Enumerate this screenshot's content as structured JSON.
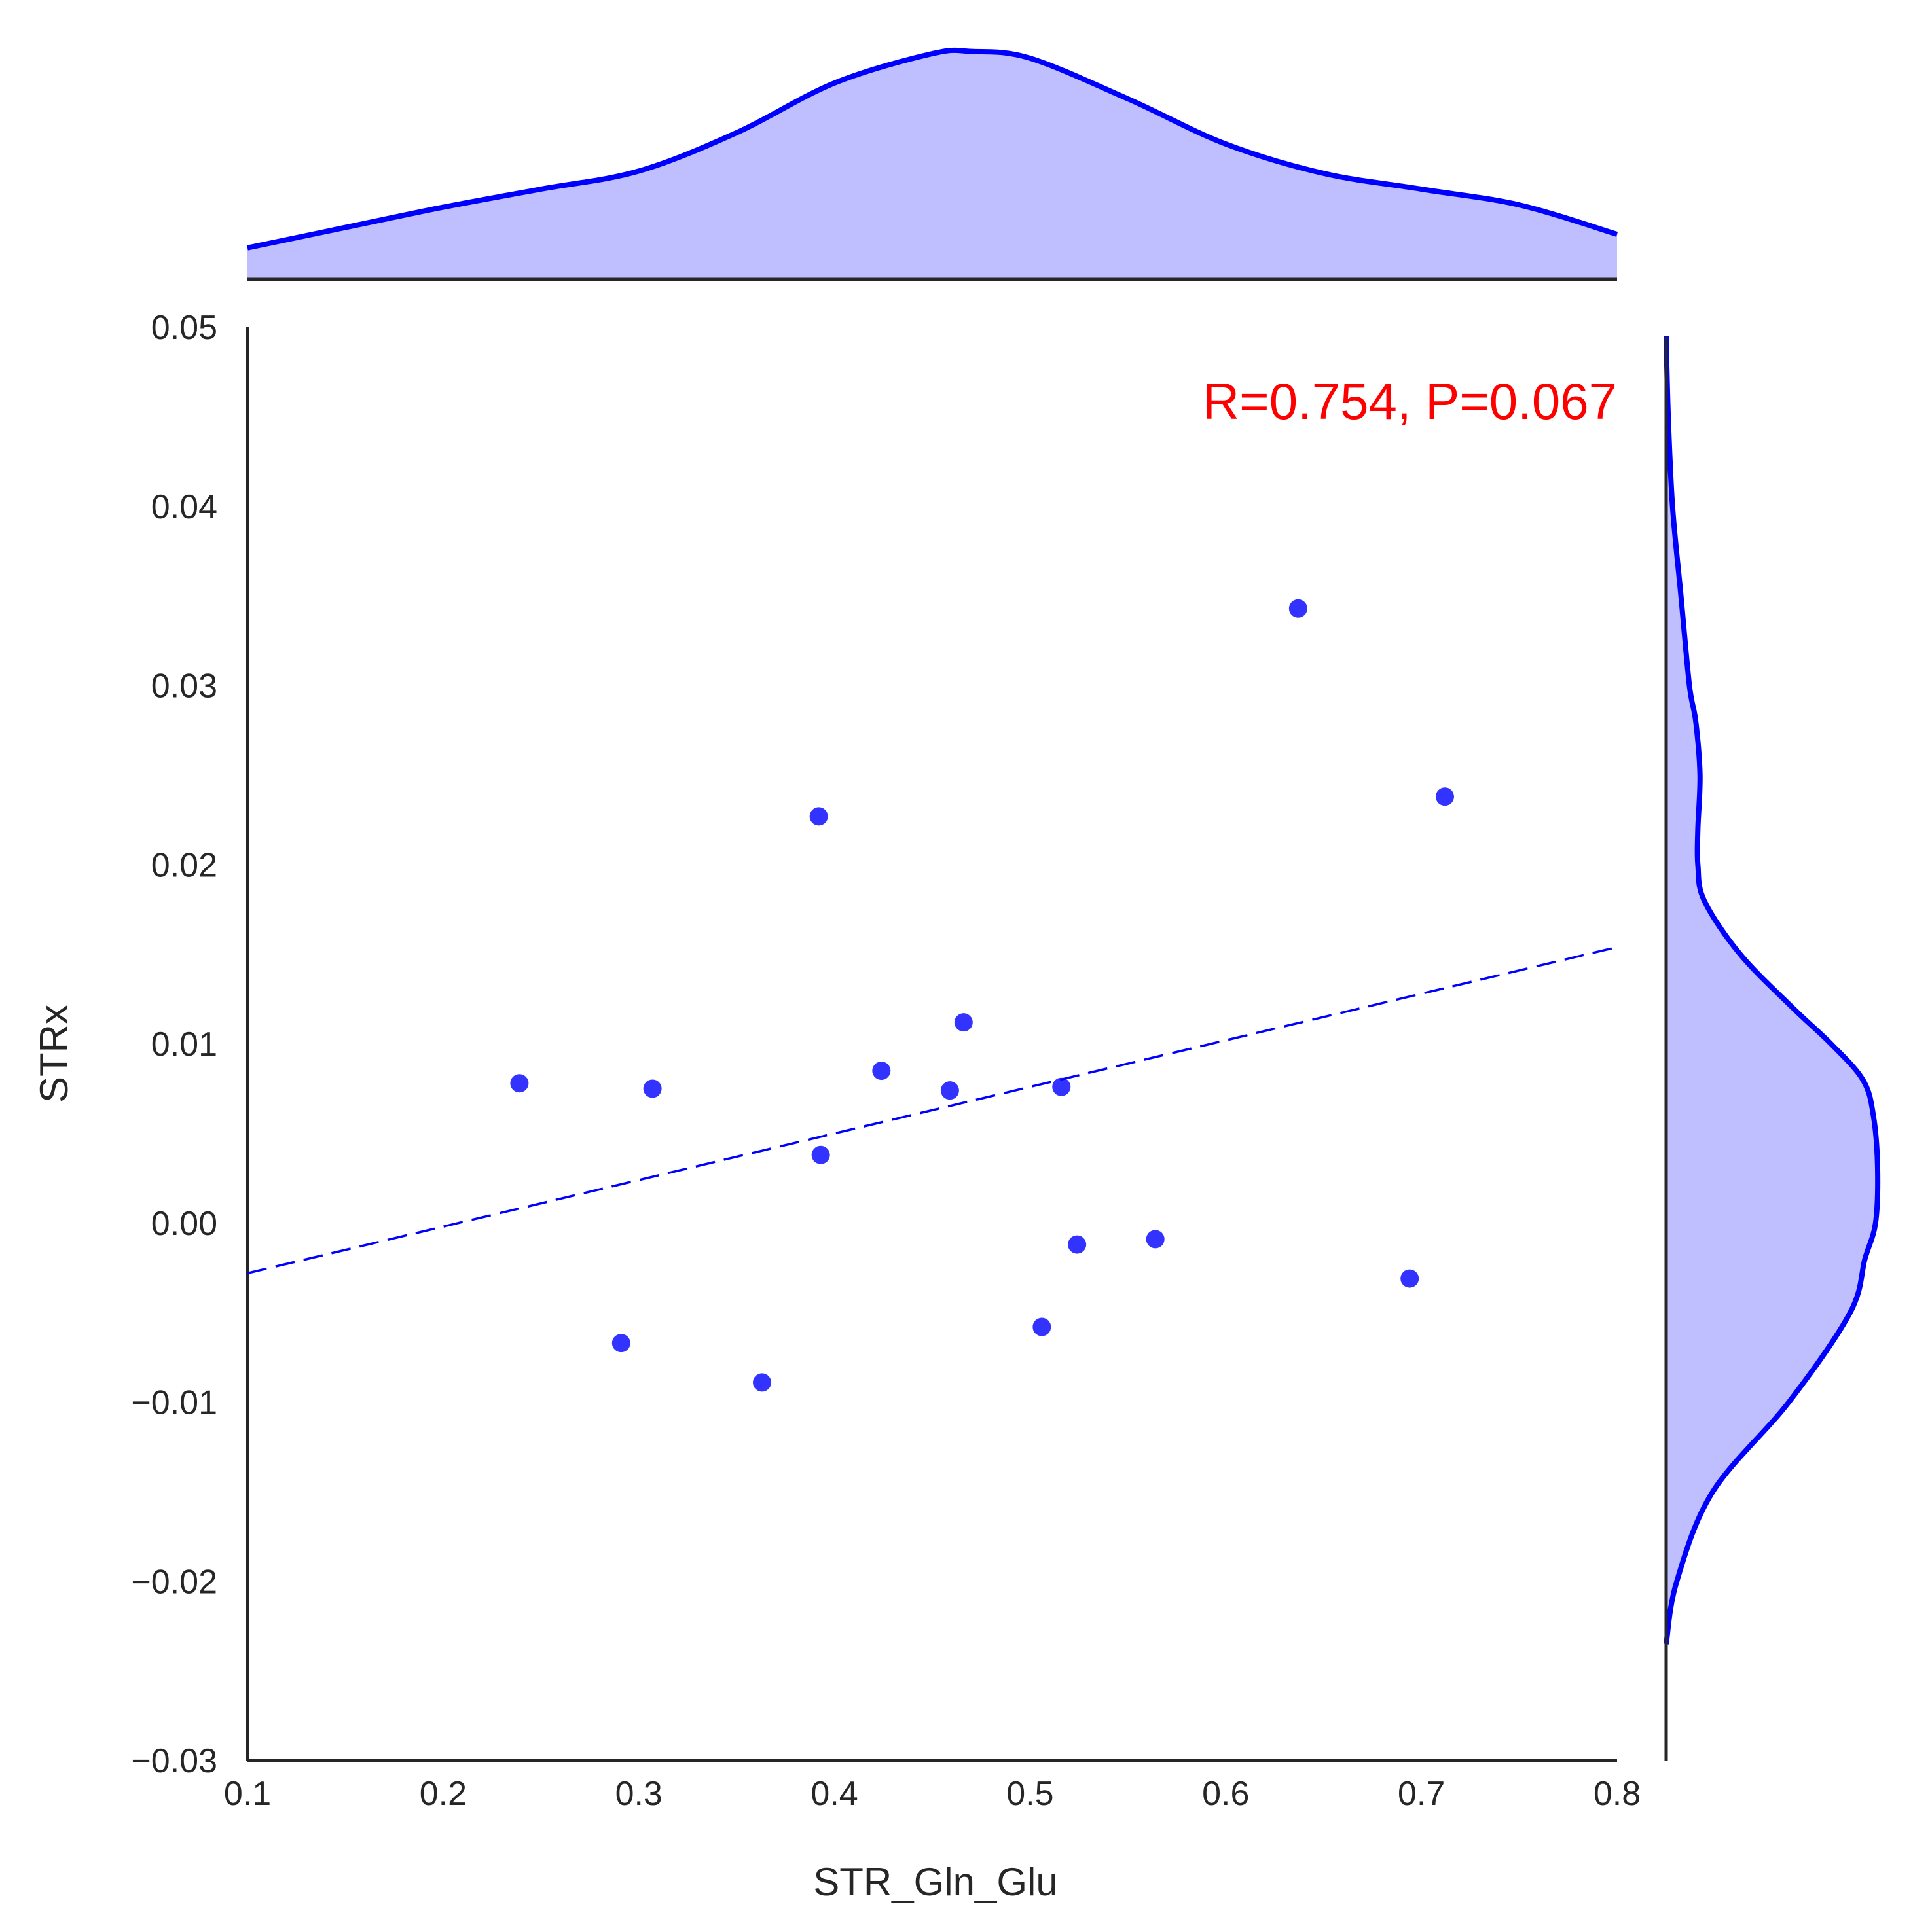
{
  "chart_data": {
    "type": "scatter",
    "title": "",
    "xlabel": "STR_Gln_Glu",
    "ylabel": "STRx",
    "xlim": [
      0.1,
      0.8
    ],
    "ylim": [
      -0.03,
      0.05
    ],
    "x_ticks": [
      "0.1",
      "0.2",
      "0.3",
      "0.4",
      "0.5",
      "0.6",
      "0.7",
      "0.8"
    ],
    "y_ticks": [
      "−0.03",
      "−0.02",
      "−0.01",
      "0.00",
      "0.01",
      "0.02",
      "0.03",
      "0.04",
      "0.05"
    ],
    "grid": false,
    "points": [
      {
        "x": 0.239,
        "y": 0.0078
      },
      {
        "x": 0.291,
        "y": -0.0067
      },
      {
        "x": 0.307,
        "y": 0.0075
      },
      {
        "x": 0.363,
        "y": -0.0089
      },
      {
        "x": 0.392,
        "y": 0.0227
      },
      {
        "x": 0.393,
        "y": 0.0038
      },
      {
        "x": 0.424,
        "y": 0.0085
      },
      {
        "x": 0.459,
        "y": 0.0074
      },
      {
        "x": 0.466,
        "y": 0.0112
      },
      {
        "x": 0.506,
        "y": -0.0058
      },
      {
        "x": 0.516,
        "y": 0.0076
      },
      {
        "x": 0.524,
        "y": -0.0012
      },
      {
        "x": 0.564,
        "y": -0.0009
      },
      {
        "x": 0.637,
        "y": 0.0343
      },
      {
        "x": 0.694,
        "y": -0.0031
      },
      {
        "x": 0.712,
        "y": 0.0238
      }
    ],
    "regression_line": {
      "x": [
        0.1,
        0.8
      ],
      "y": [
        -0.0028,
        0.0154
      ],
      "style": "dashed"
    },
    "annotation": "R=0.754, P=0.067",
    "marginal_x_kde": {
      "x": [
        0.1,
        0.15,
        0.2,
        0.25,
        0.3,
        0.35,
        0.4,
        0.45,
        0.47,
        0.5,
        0.55,
        0.6,
        0.65,
        0.7,
        0.75,
        0.8
      ],
      "density": [
        0.14,
        0.23,
        0.32,
        0.4,
        0.48,
        0.65,
        0.87,
        1.0,
        1.01,
        0.98,
        0.8,
        0.6,
        0.47,
        0.4,
        0.33,
        0.2
      ]
    },
    "marginal_y_kde": {
      "y": [
        -0.0235,
        -0.02,
        -0.015,
        -0.01,
        -0.005,
        -0.002,
        0.0,
        0.003,
        0.006,
        0.008,
        0.01,
        0.012,
        0.015,
        0.018,
        0.02,
        0.022,
        0.025,
        0.028,
        0.03,
        0.035,
        0.04,
        0.045,
        0.0495
      ],
      "density": [
        0.0,
        0.05,
        0.22,
        0.58,
        0.87,
        0.94,
        0.99,
        1.0,
        0.98,
        0.93,
        0.78,
        0.6,
        0.35,
        0.18,
        0.15,
        0.15,
        0.16,
        0.14,
        0.11,
        0.07,
        0.03,
        0.01,
        0.0
      ]
    },
    "colors": {
      "points": "#0000ff",
      "line": "#0000ff",
      "kde_fill": "#bfbfff",
      "kde_line": "#0000ff",
      "annotation": "#ff0000",
      "axes": "#262626"
    }
  }
}
